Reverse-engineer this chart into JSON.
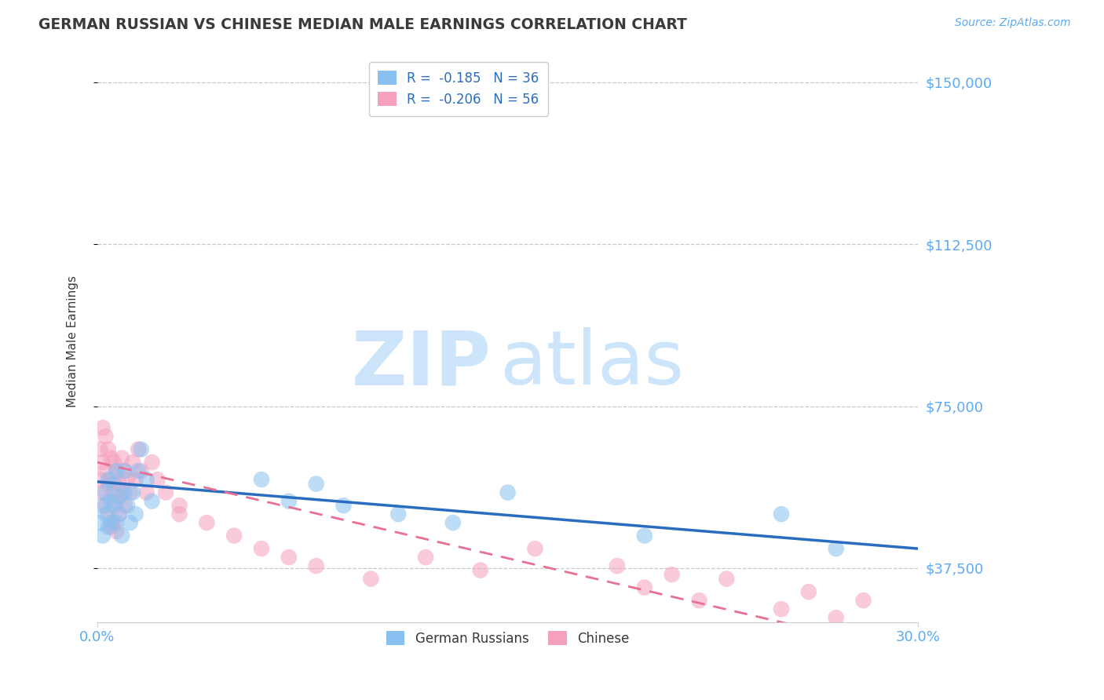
{
  "title": "GERMAN RUSSIAN VS CHINESE MEDIAN MALE EARNINGS CORRELATION CHART",
  "source_text": "Source: ZipAtlas.com",
  "ylabel": "Median Male Earnings",
  "xlim": [
    0.0,
    0.3
  ],
  "ylim": [
    25000,
    155000
  ],
  "yticks": [
    37500,
    75000,
    112500,
    150000
  ],
  "ytick_labels": [
    "$37,500",
    "$75,000",
    "$112,500",
    "$150,000"
  ],
  "xticks": [
    0.0,
    0.3
  ],
  "xtick_labels": [
    "0.0%",
    "30.0%"
  ],
  "background_color": "#ffffff",
  "grid_color": "#c8c8c8",
  "title_color": "#3a3a3a",
  "axis_label_color": "#3a3a3a",
  "tick_label_color": "#5baaf5",
  "watermark_zip": "ZIP",
  "watermark_atlas": "atlas",
  "watermark_color": "#cde5fa",
  "legend_r1": "R =  -0.185   N = 36",
  "legend_r2": "R =  -0.206   N = 56",
  "legend_label1": "German Russians",
  "legend_label2": "Chinese",
  "blue_color": "#88c0f0",
  "pink_color": "#f5a0bf",
  "blue_line_color": "#2a6cbf",
  "pink_line_color": "#e87090",
  "gr_x": [
    0.001,
    0.002,
    0.002,
    0.003,
    0.003,
    0.004,
    0.004,
    0.005,
    0.005,
    0.006,
    0.006,
    0.007,
    0.007,
    0.008,
    0.008,
    0.009,
    0.01,
    0.01,
    0.011,
    0.012,
    0.013,
    0.014,
    0.015,
    0.016,
    0.018,
    0.02,
    0.06,
    0.07,
    0.08,
    0.09,
    0.11,
    0.13,
    0.15,
    0.2,
    0.25,
    0.27
  ],
  "gr_y": [
    48000,
    52000,
    45000,
    55000,
    50000,
    58000,
    47000,
    53000,
    48000,
    57000,
    52000,
    60000,
    48000,
    54000,
    50000,
    45000,
    55000,
    60000,
    52000,
    48000,
    55000,
    50000,
    60000,
    65000,
    58000,
    53000,
    58000,
    53000,
    57000,
    52000,
    50000,
    48000,
    55000,
    45000,
    50000,
    42000
  ],
  "ch_x": [
    0.001,
    0.001,
    0.002,
    0.002,
    0.002,
    0.003,
    0.003,
    0.003,
    0.004,
    0.004,
    0.004,
    0.005,
    0.005,
    0.005,
    0.006,
    0.006,
    0.006,
    0.007,
    0.007,
    0.007,
    0.008,
    0.008,
    0.009,
    0.009,
    0.01,
    0.01,
    0.011,
    0.012,
    0.013,
    0.014,
    0.015,
    0.016,
    0.018,
    0.02,
    0.022,
    0.025,
    0.03,
    0.04,
    0.06,
    0.08,
    0.1,
    0.12,
    0.14,
    0.16,
    0.19,
    0.2,
    0.21,
    0.22,
    0.23,
    0.25,
    0.26,
    0.27,
    0.28,
    0.03,
    0.05,
    0.07
  ],
  "ch_y": [
    65000,
    58000,
    70000,
    62000,
    55000,
    68000,
    60000,
    52000,
    65000,
    57000,
    50000,
    63000,
    58000,
    47000,
    62000,
    55000,
    48000,
    60000,
    53000,
    46000,
    57000,
    50000,
    63000,
    55000,
    60000,
    52000,
    58000,
    55000,
    62000,
    58000,
    65000,
    60000,
    55000,
    62000,
    58000,
    55000,
    50000,
    48000,
    42000,
    38000,
    35000,
    40000,
    37000,
    42000,
    38000,
    33000,
    36000,
    30000,
    35000,
    28000,
    32000,
    26000,
    30000,
    52000,
    45000,
    40000
  ]
}
